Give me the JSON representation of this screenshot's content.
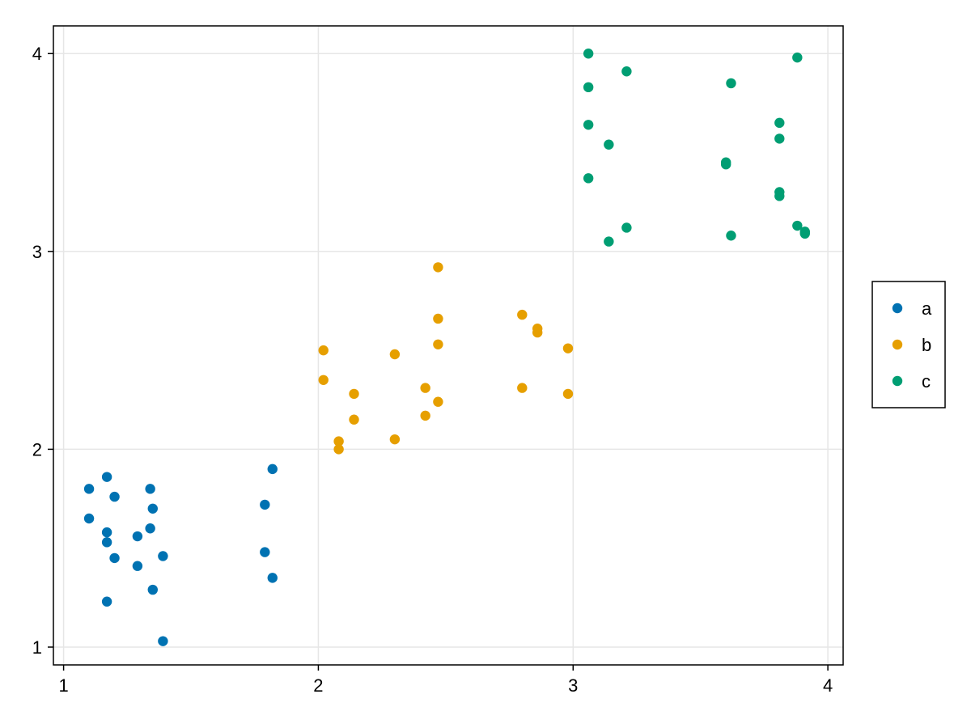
{
  "chart_data": {
    "type": "scatter",
    "xlim": [
      0.96,
      4.06
    ],
    "ylim": [
      0.91,
      4.14
    ],
    "x_ticks": [
      1,
      2,
      3,
      4
    ],
    "y_ticks": [
      1,
      2,
      3,
      4
    ],
    "x_tick_labels": [
      "1",
      "2",
      "3",
      "4"
    ],
    "y_tick_labels": [
      "1",
      "2",
      "3",
      "4"
    ],
    "grid": true,
    "legend_position": "right",
    "series": [
      {
        "name": "a",
        "color": "#0072B2",
        "points": [
          [
            1.1,
            1.8
          ],
          [
            1.1,
            1.65
          ],
          [
            1.17,
            1.86
          ],
          [
            1.17,
            1.58
          ],
          [
            1.17,
            1.53
          ],
          [
            1.17,
            1.23
          ],
          [
            1.2,
            1.76
          ],
          [
            1.2,
            1.45
          ],
          [
            1.29,
            1.56
          ],
          [
            1.29,
            1.41
          ],
          [
            1.34,
            1.8
          ],
          [
            1.35,
            1.7
          ],
          [
            1.34,
            1.6
          ],
          [
            1.35,
            1.29
          ],
          [
            1.39,
            1.46
          ],
          [
            1.39,
            1.03
          ],
          [
            1.79,
            1.72
          ],
          [
            1.79,
            1.48
          ],
          [
            1.82,
            1.9
          ],
          [
            1.82,
            1.35
          ]
        ]
      },
      {
        "name": "b",
        "color": "#E69F00",
        "points": [
          [
            2.02,
            2.5
          ],
          [
            2.02,
            2.35
          ],
          [
            2.08,
            2.04
          ],
          [
            2.08,
            2.0
          ],
          [
            2.14,
            2.28
          ],
          [
            2.14,
            2.15
          ],
          [
            2.3,
            2.48
          ],
          [
            2.3,
            2.05
          ],
          [
            2.42,
            2.31
          ],
          [
            2.42,
            2.17
          ],
          [
            2.47,
            2.92
          ],
          [
            2.47,
            2.66
          ],
          [
            2.47,
            2.53
          ],
          [
            2.47,
            2.24
          ],
          [
            2.8,
            2.68
          ],
          [
            2.8,
            2.31
          ],
          [
            2.86,
            2.61
          ],
          [
            2.86,
            2.59
          ],
          [
            2.98,
            2.51
          ],
          [
            2.98,
            2.28
          ]
        ]
      },
      {
        "name": "c",
        "color": "#009E73",
        "points": [
          [
            3.06,
            4.0
          ],
          [
            3.06,
            3.83
          ],
          [
            3.06,
            3.64
          ],
          [
            3.06,
            3.37
          ],
          [
            3.14,
            3.54
          ],
          [
            3.14,
            3.05
          ],
          [
            3.21,
            3.91
          ],
          [
            3.21,
            3.12
          ],
          [
            3.6,
            3.45
          ],
          [
            3.6,
            3.44
          ],
          [
            3.62,
            3.85
          ],
          [
            3.62,
            3.08
          ],
          [
            3.81,
            3.65
          ],
          [
            3.81,
            3.57
          ],
          [
            3.81,
            3.3
          ],
          [
            3.81,
            3.28
          ],
          [
            3.88,
            3.98
          ],
          [
            3.88,
            3.13
          ],
          [
            3.91,
            3.1
          ],
          [
            3.91,
            3.09
          ]
        ]
      }
    ]
  },
  "colors": {
    "grid": "#e6e6e6",
    "frame": "#000000"
  }
}
